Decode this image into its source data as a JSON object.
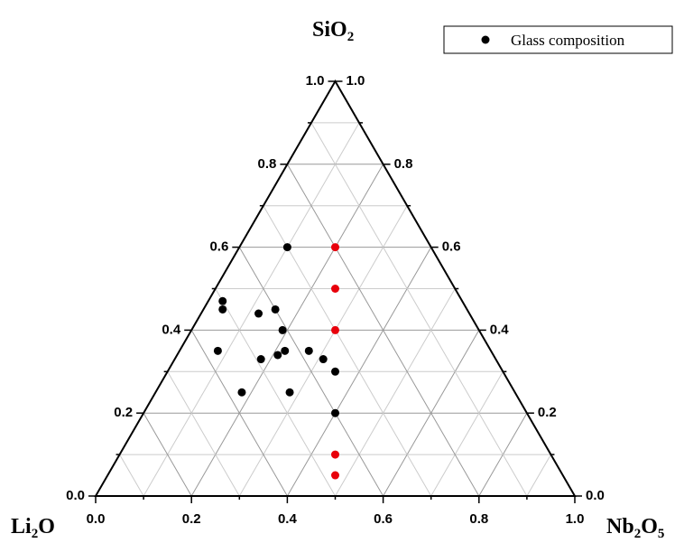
{
  "chart_data": {
    "type": "scatter",
    "subtype": "ternary",
    "grid": true,
    "grid_step": 0.1,
    "legend_placement": "top-right",
    "vertices": {
      "top": {
        "base": "SiO",
        "sub": "2"
      },
      "left": {
        "base": "Li",
        "sub": "2",
        "rest": "O"
      },
      "right": {
        "base": "Nb",
        "sub": "2",
        "rest": "O",
        "sub2": "5"
      }
    },
    "axes": {
      "bottom_ticks": [
        "0.0",
        "0.2",
        "0.4",
        "0.6",
        "0.8",
        "1.0"
      ],
      "left_ticks": [
        "0.0",
        "0.2",
        "0.4",
        "0.6",
        "0.8",
        "1.0"
      ],
      "right_ticks": [
        "0.0",
        "0.2",
        "0.4",
        "0.6",
        "0.8",
        "1.0"
      ]
    },
    "legend": [
      {
        "label": "Glass composition",
        "color": "#000000"
      }
    ],
    "point_colors": {
      "black": "#000000",
      "red": "#e8000b"
    },
    "points": [
      {
        "SiO2": 0.6,
        "Nb2O5": 0.1,
        "color": "black"
      },
      {
        "SiO2": 0.6,
        "Nb2O5": 0.2,
        "color": "red"
      },
      {
        "SiO2": 0.5,
        "Nb2O5": 0.25,
        "color": "red"
      },
      {
        "SiO2": 0.4,
        "Nb2O5": 0.3,
        "color": "red"
      },
      {
        "SiO2": 0.3,
        "Nb2O5": 0.35,
        "color": "black"
      },
      {
        "SiO2": 0.1,
        "Nb2O5": 0.45,
        "color": "red"
      },
      {
        "SiO2": 0.05,
        "Nb2O5": 0.475,
        "color": "red"
      },
      {
        "SiO2": 0.47,
        "Nb2O5": 0.03,
        "color": "black"
      },
      {
        "SiO2": 0.45,
        "Nb2O5": 0.04,
        "color": "black"
      },
      {
        "SiO2": 0.45,
        "Nb2O5": 0.15,
        "color": "black"
      },
      {
        "SiO2": 0.44,
        "Nb2O5": 0.12,
        "color": "black"
      },
      {
        "SiO2": 0.4,
        "Nb2O5": 0.19,
        "color": "black"
      },
      {
        "SiO2": 0.35,
        "Nb2O5": 0.08,
        "color": "black"
      },
      {
        "SiO2": 0.35,
        "Nb2O5": 0.22,
        "color": "black"
      },
      {
        "SiO2": 0.34,
        "Nb2O5": 0.21,
        "color": "black"
      },
      {
        "SiO2": 0.33,
        "Nb2O5": 0.18,
        "color": "black"
      },
      {
        "SiO2": 0.35,
        "Nb2O5": 0.27,
        "color": "black"
      },
      {
        "SiO2": 0.33,
        "Nb2O5": 0.31,
        "color": "black"
      },
      {
        "SiO2": 0.25,
        "Nb2O5": 0.18,
        "color": "black"
      },
      {
        "SiO2": 0.25,
        "Nb2O5": 0.28,
        "color": "black"
      },
      {
        "SiO2": 0.2,
        "Nb2O5": 0.4,
        "color": "black"
      }
    ]
  }
}
